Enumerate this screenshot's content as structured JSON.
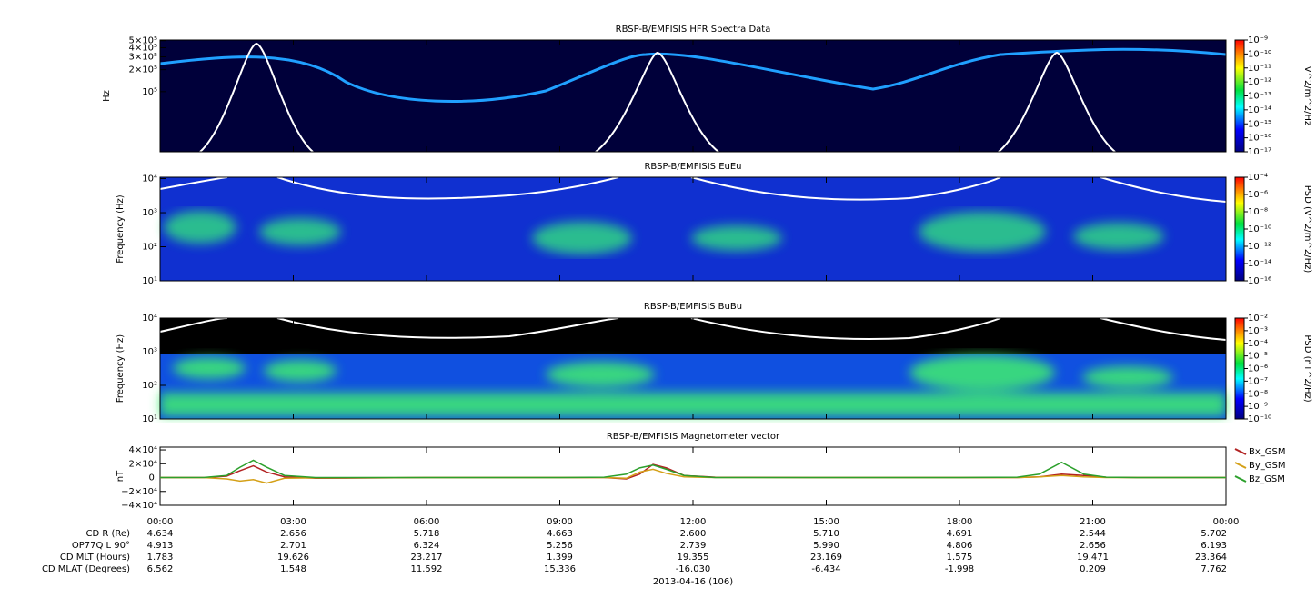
{
  "chart_data": [
    {
      "type": "heatmap",
      "title": "RBSP-B/EMFISIS  HFR Spectra Data",
      "y_label": "Hz",
      "log_y": true,
      "ylim": [
        15000,
        510000
      ],
      "yticks": [
        {
          "value": 500000,
          "label": "5×10⁵"
        },
        {
          "value": 400000,
          "label": "4×10⁵"
        },
        {
          "value": 300000,
          "label": "3×10⁵"
        },
        {
          "value": 200000,
          "label": "2×10⁵"
        },
        {
          "value": 100000,
          "label": "10⁵"
        }
      ],
      "colorbar_label": "V^2/m^2/Hz",
      "clim": [
        1e-17,
        1e-09
      ],
      "cticks": [
        {
          "value": 1e-09,
          "label": "10⁻⁹"
        },
        {
          "value": 1e-10,
          "label": "10⁻¹⁰"
        },
        {
          "value": 1e-11,
          "label": "10⁻¹¹"
        },
        {
          "value": 1e-12,
          "label": "10⁻¹²"
        },
        {
          "value": 1e-13,
          "label": "10⁻¹³"
        },
        {
          "value": 1e-14,
          "label": "10⁻¹⁴"
        },
        {
          "value": 1e-15,
          "label": "10⁻¹⁵"
        },
        {
          "value": 1e-16,
          "label": "10⁻¹⁶"
        },
        {
          "value": 1e-17,
          "label": "10⁻¹⁷"
        }
      ]
    },
    {
      "type": "heatmap",
      "title": "RBSP-B/EMFISIS  EuEu",
      "y_label": "Frequency (Hz)",
      "log_y": true,
      "ylim": [
        10,
        11000
      ],
      "yticks": [
        {
          "value": 10000,
          "label": "10⁴"
        },
        {
          "value": 1000,
          "label": "10³"
        },
        {
          "value": 100,
          "label": "10²"
        },
        {
          "value": 10,
          "label": "10¹"
        }
      ],
      "colorbar_label": "PSD (V^2/m^2/Hz)",
      "clim": [
        1e-16,
        0.0001
      ],
      "cticks": [
        {
          "value": 0.0001,
          "label": "10⁻⁴"
        },
        {
          "value": 1e-06,
          "label": "10⁻⁶"
        },
        {
          "value": 1e-08,
          "label": "10⁻⁸"
        },
        {
          "value": 1e-10,
          "label": "10⁻¹⁰"
        },
        {
          "value": 1e-12,
          "label": "10⁻¹²"
        },
        {
          "value": 1e-14,
          "label": "10⁻¹⁴"
        },
        {
          "value": 1e-16,
          "label": "10⁻¹⁶"
        }
      ]
    },
    {
      "type": "heatmap",
      "title": "RBSP-B/EMFISIS  BuBu",
      "y_label": "Frequency (Hz)",
      "log_y": true,
      "ylim": [
        10,
        10000
      ],
      "yticks": [
        {
          "value": 10000,
          "label": "10⁴"
        },
        {
          "value": 1000,
          "label": "10³"
        },
        {
          "value": 100,
          "label": "10²"
        },
        {
          "value": 10,
          "label": "10¹"
        }
      ],
      "colorbar_label": "PSD (nT^2/Hz)",
      "clim": [
        1e-10,
        0.01
      ],
      "cticks": [
        {
          "value": 0.01,
          "label": "10⁻²"
        },
        {
          "value": 0.001,
          "label": "10⁻³"
        },
        {
          "value": 0.0001,
          "label": "10⁻⁴"
        },
        {
          "value": 1e-05,
          "label": "10⁻⁵"
        },
        {
          "value": 1e-06,
          "label": "10⁻⁶"
        },
        {
          "value": 1e-07,
          "label": "10⁻⁷"
        },
        {
          "value": 1e-08,
          "label": "10⁻⁸"
        },
        {
          "value": 1e-09,
          "label": "10⁻⁹"
        },
        {
          "value": 1e-10,
          "label": "10⁻¹⁰"
        }
      ]
    },
    {
      "type": "line",
      "title": "RBSP-B/EMFISIS  Magnetometer vector",
      "y_label": "nT",
      "x_label": "2013-04-16 (106)",
      "xlim": [
        0,
        24
      ],
      "xticks": [
        {
          "value": 0,
          "label": "00:00"
        },
        {
          "value": 3,
          "label": "03:00"
        },
        {
          "value": 6,
          "label": "06:00"
        },
        {
          "value": 9,
          "label": "09:00"
        },
        {
          "value": 12,
          "label": "12:00"
        },
        {
          "value": 15,
          "label": "15:00"
        },
        {
          "value": 18,
          "label": "18:00"
        },
        {
          "value": 21,
          "label": "21:00"
        },
        {
          "value": 24,
          "label": "00:00"
        }
      ],
      "ylim": [
        -40000,
        44000
      ],
      "yticks": [
        {
          "value": 40000,
          "label": "4×10⁴"
        },
        {
          "value": 20000,
          "label": "2×10⁴"
        },
        {
          "value": 0,
          "label": "0."
        },
        {
          "value": -20000,
          "label": "−2×10⁴"
        },
        {
          "value": -40000,
          "label": "−4×10⁴"
        }
      ],
      "x": [
        0,
        1,
        1.5,
        1.8,
        2.1,
        2.4,
        2.8,
        3.5,
        6,
        9,
        10,
        10.5,
        10.8,
        11.1,
        11.4,
        11.8,
        12.5,
        15,
        18,
        19.3,
        19.8,
        20.3,
        20.8,
        21.3,
        22,
        24
      ],
      "series": [
        {
          "name": "Bx_GSM",
          "color": "#b22222",
          "values": [
            0,
            100,
            2000,
            10000,
            17000,
            8000,
            1000,
            -1000,
            0,
            0,
            0,
            -2000,
            5000,
            19000,
            14000,
            3000,
            500,
            0,
            0,
            0,
            1000,
            5000,
            3000,
            500,
            0,
            0
          ]
        },
        {
          "name": "By_GSM",
          "color": "#d4a017",
          "values": [
            0,
            -100,
            -2000,
            -5000,
            -3000,
            -8000,
            -1000,
            -500,
            0,
            0,
            0,
            -1000,
            8000,
            12000,
            6000,
            1000,
            0,
            0,
            0,
            0,
            1000,
            3000,
            1000,
            0,
            0,
            0
          ]
        },
        {
          "name": "Bz_GSM",
          "color": "#2ca02c",
          "values": [
            0,
            200,
            3000,
            15000,
            25000,
            15000,
            3000,
            0,
            0,
            0,
            500,
            5000,
            14000,
            18000,
            12000,
            3000,
            0,
            0,
            0,
            500,
            5000,
            22000,
            5000,
            500,
            0,
            0
          ]
        }
      ]
    }
  ],
  "ephemeris": {
    "rows": [
      {
        "label": "CD R (Re)",
        "values": [
          "4.634",
          "2.656",
          "5.718",
          "4.663",
          "2.600",
          "5.710",
          "4.691",
          "2.544",
          "5.702"
        ]
      },
      {
        "label": "OP77Q L 90°",
        "values": [
          "4.913",
          "2.701",
          "6.324",
          "5.256",
          "2.739",
          "5.990",
          "4.806",
          "2.656",
          "6.193"
        ]
      },
      {
        "label": "CD MLT (Hours)",
        "values": [
          "1.783",
          "19.626",
          "23.217",
          "1.399",
          "19.355",
          "23.169",
          "1.575",
          "19.471",
          "23.364"
        ]
      },
      {
        "label": "CD MLAT (Degrees)",
        "values": [
          "6.562",
          "1.548",
          "11.592",
          "15.336",
          "-16.030",
          "-6.434",
          "-1.998",
          "0.209",
          "7.762"
        ]
      }
    ]
  }
}
